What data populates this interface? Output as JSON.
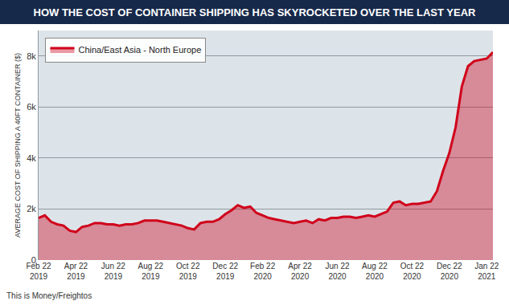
{
  "chart_data": {
    "type": "area",
    "title": "HOW THE COST OF CONTAINER SHIPPING HAS SKYROCKETED OVER THE LAST YEAR",
    "y_label": "AVERAGE COST OF SHIPPING A 40FT CONTAINER ($)",
    "source": "This is Money/Freightos",
    "categories": [
      "Feb 22 2019",
      null,
      null,
      null,
      null,
      null,
      "Apr 22 2019",
      null,
      null,
      null,
      null,
      null,
      "Jun 22 2019",
      null,
      null,
      null,
      null,
      null,
      "Aug 22 2019",
      null,
      null,
      null,
      null,
      null,
      "Oct 22 2019",
      null,
      null,
      null,
      null,
      null,
      "Dec 22 2019",
      null,
      null,
      null,
      null,
      null,
      "Feb 22 2020",
      null,
      null,
      null,
      null,
      null,
      "Apr 22 2020",
      null,
      null,
      null,
      null,
      null,
      "Jun 22 2020",
      null,
      null,
      null,
      null,
      null,
      "Aug 22 2020",
      null,
      null,
      null,
      null,
      null,
      "Oct 22 2020",
      null,
      null,
      null,
      null,
      null,
      "Dec 22 2020",
      null,
      null,
      null,
      null,
      null,
      "Jan 22 2021",
      null
    ],
    "series": [
      {
        "name": "China/East Asia - North Europe",
        "color": "#d0021b",
        "values": [
          1650,
          1750,
          1500,
          1400,
          1350,
          1150,
          1100,
          1300,
          1350,
          1450,
          1450,
          1400,
          1400,
          1350,
          1400,
          1400,
          1450,
          1550,
          1550,
          1550,
          1500,
          1450,
          1400,
          1350,
          1250,
          1200,
          1450,
          1500,
          1500,
          1600,
          1800,
          1950,
          2150,
          2050,
          2100,
          1850,
          1750,
          1650,
          1600,
          1550,
          1500,
          1450,
          1500,
          1550,
          1450,
          1600,
          1550,
          1650,
          1650,
          1700,
          1700,
          1650,
          1700,
          1750,
          1700,
          1800,
          1900,
          2250,
          2300,
          2150,
          2200,
          2200,
          2250,
          2300,
          2700,
          3500,
          4200,
          5200,
          6800,
          7600,
          7800,
          7850,
          7900,
          8150
        ]
      }
    ],
    "ylim": [
      0,
      9000
    ],
    "yticks": [
      0,
      {
        "value": 2000,
        "label": "2k"
      },
      {
        "value": 4000,
        "label": "4k"
      },
      {
        "value": 6000,
        "label": "6k"
      },
      {
        "value": 8000,
        "label": "8k"
      }
    ],
    "grid": true,
    "legend": "top left"
  }
}
